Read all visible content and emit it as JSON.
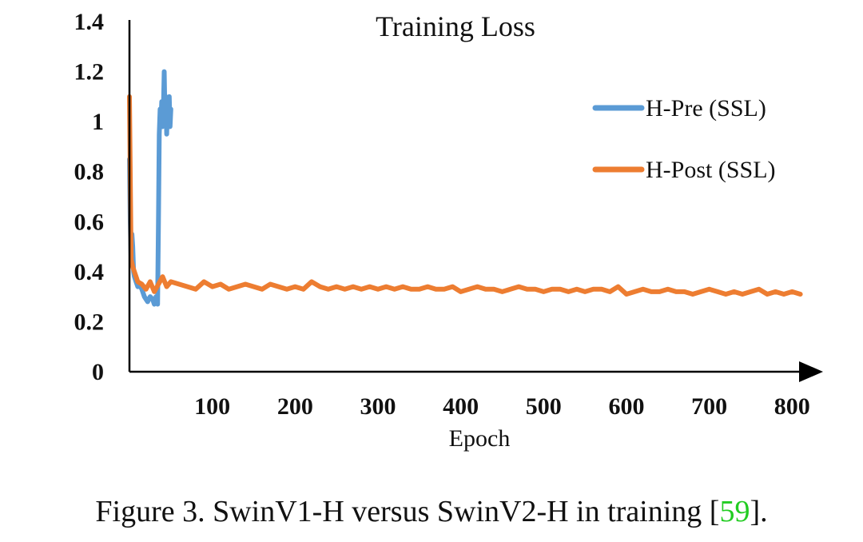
{
  "chart_data": {
    "type": "line",
    "title": "Training Loss",
    "xlabel": "Epoch",
    "ylabel": "",
    "xlim": [
      0,
      820
    ],
    "ylim": [
      0,
      1.4
    ],
    "x_ticks": [
      "100",
      "200",
      "300",
      "400",
      "500",
      "600",
      "700",
      "800"
    ],
    "x_tick_values": [
      100,
      200,
      300,
      400,
      500,
      600,
      700,
      800
    ],
    "y_ticks": [
      "0",
      "0.2",
      "0.4",
      "0.6",
      "0.8",
      "1",
      "1.2",
      "1.4"
    ],
    "y_tick_values": [
      0,
      0.2,
      0.4,
      0.6,
      0.8,
      1.0,
      1.2,
      1.4
    ],
    "legend_position": "right",
    "series": [
      {
        "name": "H-Pre (SSL)",
        "color": "#5b9bd5",
        "x": [
          0,
          1,
          2,
          3,
          4,
          5,
          6,
          8,
          10,
          12,
          15,
          18,
          20,
          22,
          25,
          28,
          30,
          32,
          34,
          35,
          36,
          37,
          38,
          39,
          40,
          41,
          42,
          43,
          44,
          45,
          46,
          47,
          48,
          49,
          50
        ],
        "y": [
          0.85,
          0.6,
          0.45,
          0.55,
          0.5,
          0.4,
          0.38,
          0.36,
          0.34,
          0.35,
          0.33,
          0.3,
          0.29,
          0.28,
          0.3,
          0.29,
          0.27,
          0.3,
          0.27,
          0.6,
          0.95,
          1.05,
          1.0,
          1.08,
          0.98,
          1.05,
          1.2,
          1.0,
          1.1,
          0.95,
          1.08,
          1.02,
          1.1,
          0.98,
          1.05
        ]
      },
      {
        "name": "H-Post (SSL)",
        "color": "#ed7d31",
        "x": [
          0,
          2,
          4,
          6,
          8,
          10,
          15,
          20,
          25,
          30,
          35,
          40,
          45,
          50,
          60,
          70,
          80,
          90,
          100,
          110,
          120,
          130,
          140,
          150,
          160,
          170,
          180,
          190,
          200,
          210,
          220,
          230,
          240,
          250,
          260,
          270,
          280,
          290,
          300,
          310,
          320,
          330,
          340,
          350,
          360,
          370,
          380,
          390,
          400,
          410,
          420,
          430,
          440,
          450,
          460,
          470,
          480,
          490,
          500,
          510,
          520,
          530,
          540,
          550,
          560,
          570,
          580,
          590,
          600,
          610,
          620,
          630,
          640,
          650,
          660,
          670,
          680,
          690,
          700,
          710,
          720,
          730,
          740,
          750,
          760,
          770,
          780,
          790,
          800,
          810
        ],
        "y": [
          1.1,
          0.45,
          0.42,
          0.4,
          0.38,
          0.36,
          0.35,
          0.33,
          0.36,
          0.32,
          0.35,
          0.38,
          0.34,
          0.36,
          0.35,
          0.34,
          0.33,
          0.36,
          0.34,
          0.35,
          0.33,
          0.34,
          0.35,
          0.34,
          0.33,
          0.35,
          0.34,
          0.33,
          0.34,
          0.33,
          0.36,
          0.34,
          0.33,
          0.34,
          0.33,
          0.34,
          0.33,
          0.34,
          0.33,
          0.34,
          0.33,
          0.34,
          0.33,
          0.33,
          0.34,
          0.33,
          0.33,
          0.34,
          0.32,
          0.33,
          0.34,
          0.33,
          0.33,
          0.32,
          0.33,
          0.34,
          0.33,
          0.33,
          0.32,
          0.33,
          0.33,
          0.32,
          0.33,
          0.32,
          0.33,
          0.33,
          0.32,
          0.34,
          0.31,
          0.32,
          0.33,
          0.32,
          0.32,
          0.33,
          0.32,
          0.32,
          0.31,
          0.32,
          0.33,
          0.32,
          0.31,
          0.32,
          0.31,
          0.32,
          0.33,
          0.31,
          0.32,
          0.31,
          0.32,
          0.31
        ]
      }
    ]
  },
  "caption": {
    "prefix": "Figure 3. SwinV1-H versus SwinV2-H in training [",
    "ref": "59",
    "suffix": "]."
  }
}
